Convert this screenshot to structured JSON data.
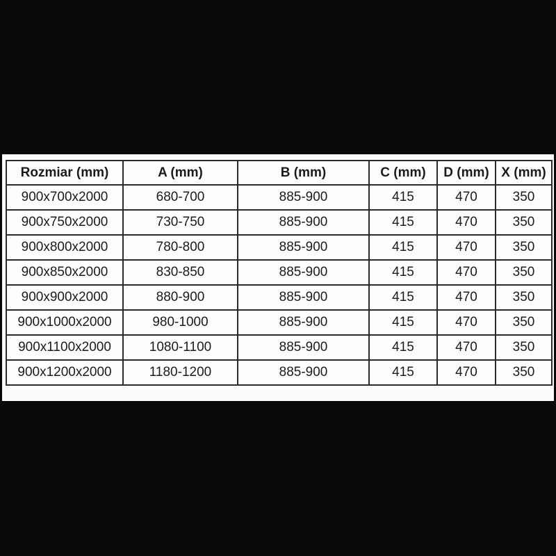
{
  "page": {
    "background_color": "#080808",
    "panel_color": "#fbfbfb",
    "border_color": "#2a2a2a"
  },
  "chart_data": {
    "type": "table",
    "title": "",
    "columns": [
      "Rozmiar (mm)",
      "A (mm)",
      "B (mm)",
      "C (mm)",
      "D (mm)",
      "X (mm)"
    ],
    "rows": [
      [
        "900x700x2000",
        "680-700",
        "885-900",
        "415",
        "470",
        "350"
      ],
      [
        "900x750x2000",
        "730-750",
        "885-900",
        "415",
        "470",
        "350"
      ],
      [
        "900x800x2000",
        "780-800",
        "885-900",
        "415",
        "470",
        "350"
      ],
      [
        "900x850x2000",
        "830-850",
        "885-900",
        "415",
        "470",
        "350"
      ],
      [
        "900x900x2000",
        "880-900",
        "885-900",
        "415",
        "470",
        "350"
      ],
      [
        "900x1000x2000",
        "980-1000",
        "885-900",
        "415",
        "470",
        "350"
      ],
      [
        "900x1100x2000",
        "1080-1100",
        "885-900",
        "415",
        "470",
        "350"
      ],
      [
        "900x1200x2000",
        "1180-1200",
        "885-900",
        "415",
        "470",
        "350"
      ]
    ]
  }
}
